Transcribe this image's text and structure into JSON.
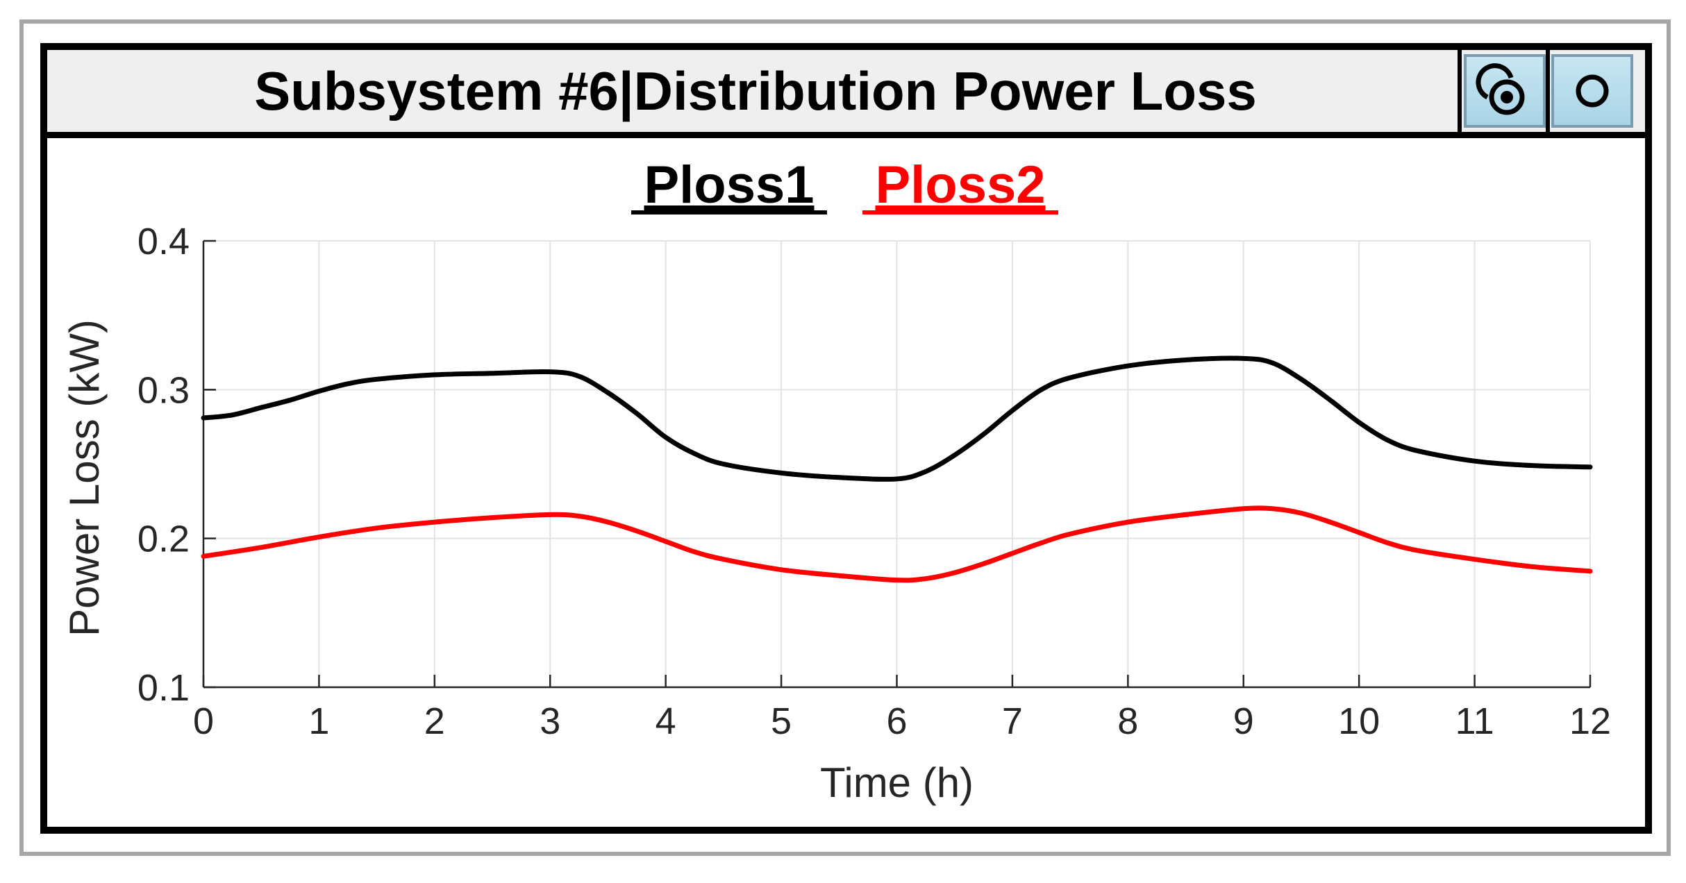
{
  "window": {
    "title": "Subsystem #6|Distribution Power Loss",
    "buttons": [
      {
        "label": "",
        "icon": "pin-target-icon"
      },
      {
        "label": "",
        "icon": "circle-icon"
      }
    ]
  },
  "chart_data": {
    "type": "line",
    "title": "",
    "xlabel": "Time (h)",
    "ylabel": "Power Loss (kW)",
    "xlim": [
      0,
      12
    ],
    "ylim": [
      0.1,
      0.4
    ],
    "xticks": [
      "0",
      "1",
      "2",
      "3",
      "4",
      "5",
      "6",
      "7",
      "8",
      "9",
      "10",
      "11",
      "12"
    ],
    "yticks": [
      "0.1",
      "0.2",
      "0.3",
      "0.4"
    ],
    "grid": true,
    "legend_position": "top-center",
    "series": [
      {
        "name": "Ploss1",
        "color": "#000000",
        "x": [
          0,
          0.25,
          0.5,
          0.75,
          1,
          1.25,
          1.5,
          2,
          2.5,
          3,
          3.25,
          3.5,
          3.75,
          4,
          4.25,
          4.5,
          5,
          5.5,
          6,
          6.25,
          6.5,
          6.75,
          7,
          7.25,
          7.5,
          8,
          8.5,
          9,
          9.25,
          9.5,
          9.75,
          10,
          10.25,
          10.5,
          11,
          11.5,
          12
        ],
        "y": [
          0.281,
          0.283,
          0.288,
          0.293,
          0.299,
          0.304,
          0.307,
          0.31,
          0.311,
          0.312,
          0.309,
          0.298,
          0.284,
          0.268,
          0.257,
          0.25,
          0.244,
          0.241,
          0.24,
          0.245,
          0.256,
          0.27,
          0.286,
          0.3,
          0.308,
          0.316,
          0.32,
          0.321,
          0.318,
          0.307,
          0.293,
          0.278,
          0.266,
          0.259,
          0.252,
          0.249,
          0.248
        ]
      },
      {
        "name": "Ploss2",
        "color": "#ff0000",
        "x": [
          0,
          0.5,
          1,
          1.5,
          2,
          2.5,
          3,
          3.25,
          3.5,
          3.75,
          4,
          4.25,
          4.5,
          5,
          5.5,
          6,
          6.25,
          6.5,
          6.75,
          7,
          7.25,
          7.5,
          8,
          8.5,
          9,
          9.25,
          9.5,
          9.75,
          10,
          10.25,
          10.5,
          11,
          11.5,
          12
        ],
        "y": [
          0.188,
          0.194,
          0.201,
          0.207,
          0.211,
          0.214,
          0.216,
          0.215,
          0.211,
          0.205,
          0.198,
          0.191,
          0.186,
          0.179,
          0.175,
          0.172,
          0.173,
          0.177,
          0.183,
          0.19,
          0.197,
          0.203,
          0.211,
          0.216,
          0.22,
          0.22,
          0.217,
          0.211,
          0.204,
          0.197,
          0.192,
          0.186,
          0.181,
          0.178
        ]
      }
    ]
  }
}
